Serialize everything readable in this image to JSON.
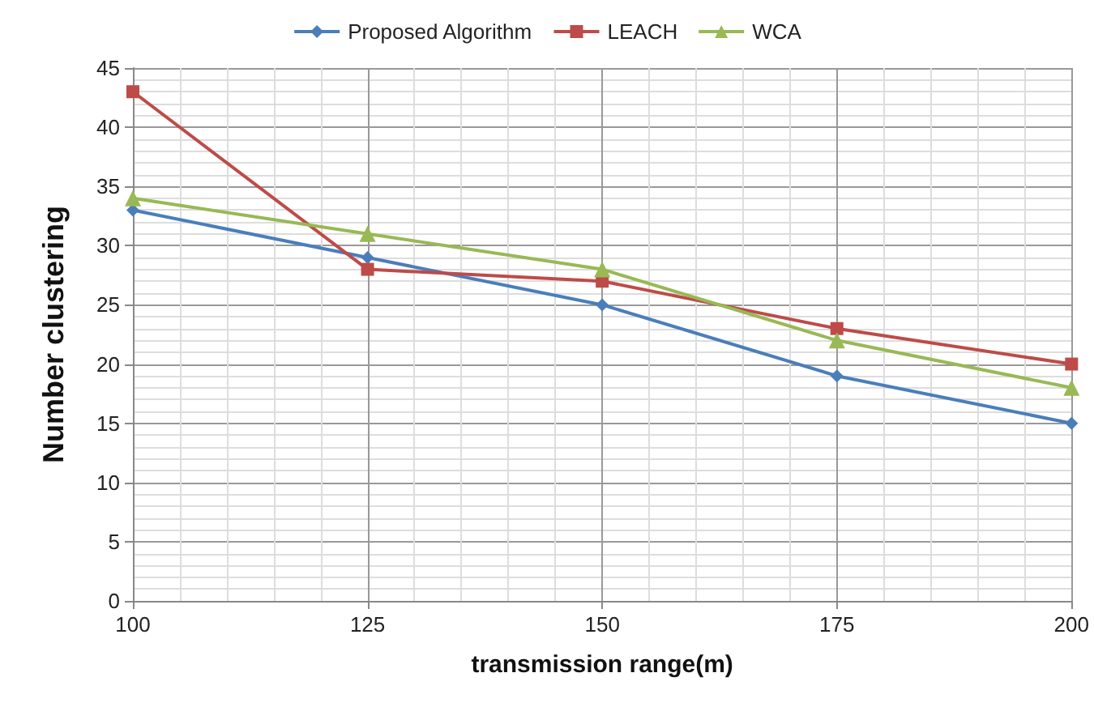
{
  "chart_data": {
    "type": "line",
    "xlabel": "transmission range(m)",
    "ylabel": "Number clustering",
    "x": [
      100,
      125,
      150,
      175,
      200
    ],
    "series": [
      {
        "name": "Proposed Algorithm",
        "color": "#4a7ebb",
        "marker": "diamond",
        "values": [
          33,
          29,
          25,
          19,
          15
        ]
      },
      {
        "name": "LEACH",
        "color": "#be4b48",
        "marker": "square",
        "values": [
          43,
          28,
          27,
          23,
          20
        ]
      },
      {
        "name": "WCA",
        "color": "#98b954",
        "marker": "triangle",
        "values": [
          34,
          31,
          28,
          22,
          18
        ]
      }
    ],
    "xlim": [
      100,
      200
    ],
    "xticks": [
      100,
      125,
      150,
      175,
      200
    ],
    "ylim": [
      0,
      45
    ],
    "yticks": [
      0,
      5,
      10,
      15,
      20,
      25,
      30,
      35,
      40,
      45
    ],
    "grid": true,
    "legend": "top"
  }
}
